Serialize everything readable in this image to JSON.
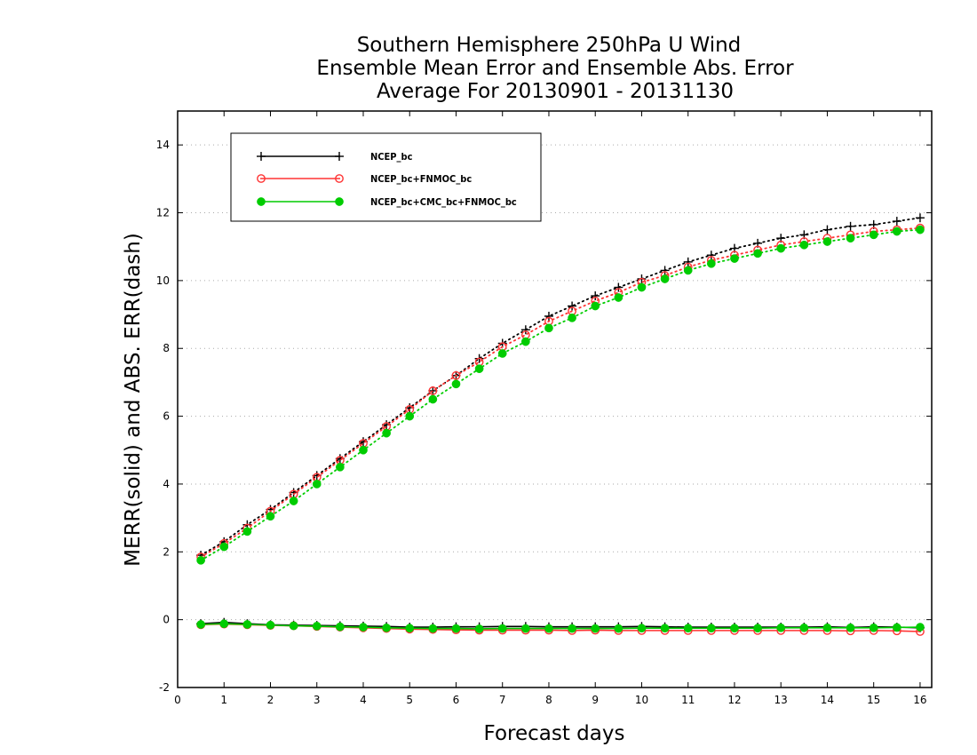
{
  "chart_data": {
    "type": "line",
    "title_lines": [
      "Southern Hemisphere 250hPa U Wind",
      "Ensemble Mean Error and Ensemble Abs. Error",
      "Average For 20130901 - 20131130"
    ],
    "xlabel": "Forecast days",
    "ylabel": "MERR(solid) and ABS. ERR(dash)",
    "xlim": [
      0,
      16.25
    ],
    "ylim": [
      -2,
      15
    ],
    "x_ticks": [
      0,
      1,
      2,
      3,
      4,
      5,
      6,
      7,
      8,
      9,
      10,
      11,
      12,
      13,
      14,
      15,
      16
    ],
    "y_ticks": [
      -2,
      0,
      2,
      4,
      6,
      8,
      10,
      12,
      14
    ],
    "grid": "horizontal dotted",
    "legend_position": "top-left",
    "x": [
      0.5,
      1.0,
      1.5,
      2.0,
      2.5,
      3.0,
      3.5,
      4.0,
      4.5,
      5.0,
      5.5,
      6.0,
      6.5,
      7.0,
      7.5,
      8.0,
      8.5,
      9.0,
      9.5,
      10.0,
      10.5,
      11.0,
      11.5,
      12.0,
      12.5,
      13.0,
      13.5,
      14.0,
      14.5,
      15.0,
      15.5,
      16.0
    ],
    "series": [
      {
        "name": "NCEP_bc",
        "color": "#000000",
        "marker": "plus",
        "abs_err": [
          1.9,
          2.3,
          2.8,
          3.25,
          3.75,
          4.25,
          4.75,
          5.25,
          5.75,
          6.25,
          6.75,
          7.2,
          7.7,
          8.15,
          8.55,
          8.95,
          9.25,
          9.55,
          9.8,
          10.05,
          10.3,
          10.55,
          10.75,
          10.95,
          11.1,
          11.25,
          11.35,
          11.5,
          11.6,
          11.65,
          11.75,
          11.85
        ],
        "mean_err": [
          -0.12,
          -0.08,
          -0.12,
          -0.15,
          -0.16,
          -0.17,
          -0.18,
          -0.19,
          -0.2,
          -0.22,
          -0.22,
          -0.21,
          -0.21,
          -0.2,
          -0.2,
          -0.21,
          -0.21,
          -0.21,
          -0.21,
          -0.2,
          -0.21,
          -0.22,
          -0.22,
          -0.22,
          -0.22,
          -0.22,
          -0.22,
          -0.21,
          -0.23,
          -0.21,
          -0.22,
          -0.24
        ]
      },
      {
        "name": "NCEP_bc+FNMOC_bc",
        "color": "#ff3333",
        "marker": "open-circle",
        "abs_err": [
          1.85,
          2.25,
          2.7,
          3.2,
          3.7,
          4.2,
          4.7,
          5.2,
          5.7,
          6.2,
          6.75,
          7.2,
          7.6,
          8.05,
          8.4,
          8.8,
          9.1,
          9.4,
          9.65,
          9.95,
          10.15,
          10.4,
          10.6,
          10.75,
          10.9,
          11.05,
          11.15,
          11.25,
          11.35,
          11.45,
          11.5,
          11.55
        ],
        "mean_err": [
          -0.15,
          -0.13,
          -0.15,
          -0.17,
          -0.18,
          -0.2,
          -0.22,
          -0.24,
          -0.26,
          -0.28,
          -0.29,
          -0.3,
          -0.31,
          -0.31,
          -0.31,
          -0.31,
          -0.32,
          -0.31,
          -0.32,
          -0.32,
          -0.32,
          -0.32,
          -0.32,
          -0.32,
          -0.32,
          -0.32,
          -0.32,
          -0.32,
          -0.33,
          -0.32,
          -0.33,
          -0.35
        ]
      },
      {
        "name": "NCEP_bc+CMC_bc+FNMOC_bc",
        "color": "#00cc00",
        "marker": "filled-circle",
        "abs_err": [
          1.75,
          2.15,
          2.6,
          3.05,
          3.5,
          4.0,
          4.5,
          5.0,
          5.5,
          6.0,
          6.5,
          6.95,
          7.4,
          7.85,
          8.2,
          8.6,
          8.9,
          9.25,
          9.5,
          9.8,
          10.05,
          10.3,
          10.5,
          10.65,
          10.8,
          10.95,
          11.05,
          11.15,
          11.25,
          11.35,
          11.45,
          11.5
        ],
        "mean_err": [
          -0.14,
          -0.12,
          -0.14,
          -0.16,
          -0.18,
          -0.19,
          -0.21,
          -0.22,
          -0.24,
          -0.25,
          -0.26,
          -0.26,
          -0.27,
          -0.26,
          -0.26,
          -0.26,
          -0.26,
          -0.26,
          -0.26,
          -0.25,
          -0.25,
          -0.25,
          -0.25,
          -0.25,
          -0.25,
          -0.24,
          -0.24,
          -0.24,
          -0.24,
          -0.24,
          -0.23,
          -0.22
        ]
      }
    ]
  }
}
